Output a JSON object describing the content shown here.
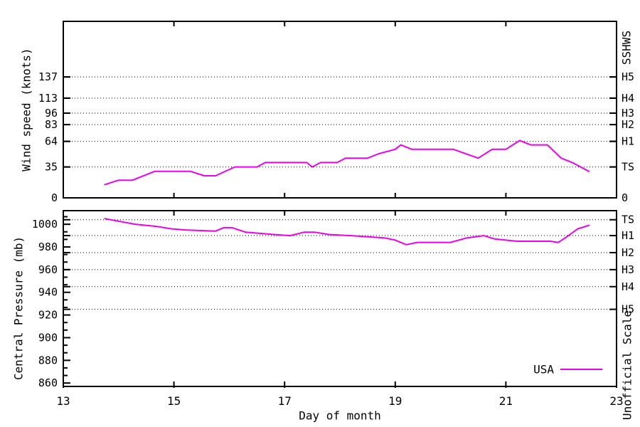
{
  "colors": {
    "line": "#EE00EE",
    "axis": "#000000",
    "background": "#FFFFFF"
  },
  "chart_data": [
    {
      "type": "line",
      "panel": "wind",
      "title": "",
      "ylabel": "Wind speed (knots)",
      "y2label": "SSHWS",
      "xlabel": "",
      "xlim": [
        13,
        23
      ],
      "ylim": [
        0,
        200
      ],
      "grid": true,
      "xticks": [
        13,
        15,
        17,
        19,
        21,
        23
      ],
      "show_xtick_labels": false,
      "yticks": [
        {
          "value": 0,
          "left": "0",
          "right": "0"
        },
        {
          "value": 35,
          "left": "35",
          "right": "TS"
        },
        {
          "value": 64,
          "left": "64",
          "right": "H1"
        },
        {
          "value": 83,
          "left": "83",
          "right": "H2"
        },
        {
          "value": 96,
          "left": "96",
          "right": "H3"
        },
        {
          "value": 113,
          "left": "113",
          "right": "H4"
        },
        {
          "value": 137,
          "left": "137",
          "right": "H5"
        }
      ],
      "gridline_values": [
        35,
        64,
        83,
        96,
        113,
        137
      ],
      "series": [
        {
          "name": "USA",
          "color": "#EE00EE",
          "points": [
            [
              13.75,
              15
            ],
            [
              14.0,
              20
            ],
            [
              14.25,
              20
            ],
            [
              14.65,
              30
            ],
            [
              15.3,
              30
            ],
            [
              15.55,
              25
            ],
            [
              15.75,
              25
            ],
            [
              16.1,
              35
            ],
            [
              16.5,
              35
            ],
            [
              16.65,
              40
            ],
            [
              17.4,
              40
            ],
            [
              17.5,
              35
            ],
            [
              17.65,
              40
            ],
            [
              17.95,
              40
            ],
            [
              18.1,
              45
            ],
            [
              18.5,
              45
            ],
            [
              18.7,
              50
            ],
            [
              19.0,
              55
            ],
            [
              19.1,
              60
            ],
            [
              19.3,
              55
            ],
            [
              20.05,
              55
            ],
            [
              20.5,
              45
            ],
            [
              20.75,
              55
            ],
            [
              21.0,
              55
            ],
            [
              21.25,
              65
            ],
            [
              21.45,
              60
            ],
            [
              21.75,
              60
            ],
            [
              22.0,
              45
            ],
            [
              22.2,
              40
            ],
            [
              22.5,
              30
            ]
          ]
        }
      ]
    },
    {
      "type": "line",
      "panel": "pressure",
      "title": "",
      "ylabel": "Central Pressure (mb)",
      "y2label": "Unofficial Scale",
      "xlabel": "Day of month",
      "xlim": [
        13,
        23
      ],
      "ylim": [
        857,
        1012
      ],
      "grid": true,
      "xticks": [
        13,
        15,
        17,
        19,
        21,
        23
      ],
      "show_xtick_labels": true,
      "yticks": [
        {
          "value": 860,
          "left": "860"
        },
        {
          "value": 880,
          "left": "880"
        },
        {
          "value": 900,
          "left": "900"
        },
        {
          "value": 920,
          "left": "920"
        },
        {
          "value": 940,
          "left": "940"
        },
        {
          "value": 960,
          "left": "960"
        },
        {
          "value": 980,
          "left": "980"
        },
        {
          "value": 1000,
          "left": "1000"
        }
      ],
      "y2ticks": [
        {
          "value": 1004,
          "label": "TS"
        },
        {
          "value": 990,
          "label": "H1"
        },
        {
          "value": 975,
          "label": "H2"
        },
        {
          "value": 960,
          "label": "H3"
        },
        {
          "value": 945,
          "label": "H4"
        },
        {
          "value": 925,
          "label": "H5"
        }
      ],
      "gridline_values": [
        1004,
        990,
        975,
        960,
        945,
        925
      ],
      "legend": {
        "label": "USA"
      },
      "series": [
        {
          "name": "USA",
          "color": "#EE00EE",
          "points": [
            [
              13.75,
              1005
            ],
            [
              14.3,
              1000
            ],
            [
              14.7,
              998
            ],
            [
              14.95,
              996
            ],
            [
              15.2,
              995
            ],
            [
              15.75,
              994
            ],
            [
              15.9,
              997
            ],
            [
              16.05,
              997
            ],
            [
              16.3,
              993
            ],
            [
              16.55,
              992
            ],
            [
              16.8,
              991
            ],
            [
              17.1,
              990
            ],
            [
              17.35,
              993
            ],
            [
              17.55,
              993
            ],
            [
              17.8,
              991
            ],
            [
              18.2,
              990
            ],
            [
              18.5,
              989
            ],
            [
              18.8,
              988
            ],
            [
              19.0,
              986
            ],
            [
              19.2,
              982
            ],
            [
              19.4,
              984
            ],
            [
              20.0,
              984
            ],
            [
              20.3,
              988
            ],
            [
              20.6,
              990
            ],
            [
              20.8,
              987
            ],
            [
              21.0,
              986
            ],
            [
              21.2,
              985
            ],
            [
              21.8,
              985
            ],
            [
              21.95,
              984
            ],
            [
              22.1,
              989
            ],
            [
              22.3,
              996
            ],
            [
              22.5,
              999
            ]
          ]
        }
      ]
    }
  ]
}
